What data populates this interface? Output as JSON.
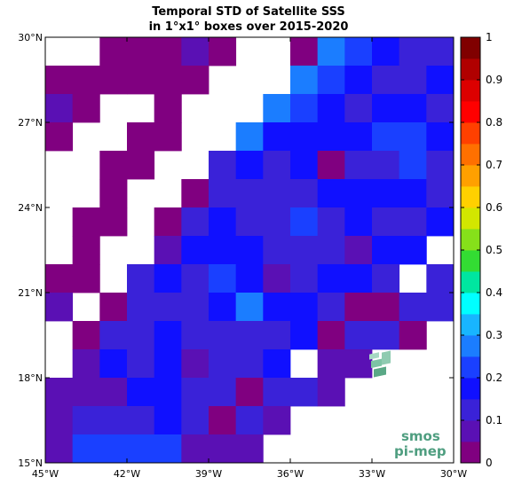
{
  "chart_data": {
    "type": "heatmap",
    "title_lines": [
      "Temporal STD of Satellite SSS",
      "in 1°x1° boxes over 2015-2020"
    ],
    "x_range": [
      -45,
      -30
    ],
    "y_range": [
      15,
      30
    ],
    "x_ticks": [
      {
        "value": -45,
        "label": "45°W"
      },
      {
        "value": -42,
        "label": "42°W"
      },
      {
        "value": -39,
        "label": "39°W"
      },
      {
        "value": -36,
        "label": "36°W"
      },
      {
        "value": -33,
        "label": "33°W"
      },
      {
        "value": -30,
        "label": "30°W"
      }
    ],
    "y_ticks": [
      {
        "value": 15,
        "label": "15°N"
      },
      {
        "value": 18,
        "label": "18°N"
      },
      {
        "value": 21,
        "label": "21°N"
      },
      {
        "value": 24,
        "label": "24°N"
      },
      {
        "value": 27,
        "label": "27°N"
      },
      {
        "value": 30,
        "label": "30°N"
      }
    ],
    "colorbar": {
      "range": [
        0,
        1
      ],
      "ticks": [
        "0",
        "0.1",
        "0.2",
        "0.3",
        "0.4",
        "0.5",
        "0.6",
        "0.7",
        "0.8",
        "0.9",
        "1"
      ],
      "colors": [
        "#800080",
        "#5a10b4",
        "#3a22d8",
        "#1010ff",
        "#1a40ff",
        "#1b7dff",
        "#18b5ff",
        "#00ffff",
        "#00e6a0",
        "#33dc33",
        "#86e01a",
        "#d2e600",
        "#ffd000",
        "#ffa000",
        "#ff7000",
        "#ff4000",
        "#ff0000",
        "#dc0000",
        "#b00000",
        "#800000"
      ]
    },
    "cell_lon_start": -45,
    "cell_lat_start": 29,
    "cell_size_deg": 1,
    "grid_rows_north_to_south": [
      [
        null,
        null,
        0.02,
        0.02,
        0.02,
        0.06,
        0.03,
        null,
        null,
        0.02,
        0.28,
        0.22,
        0.18,
        0.1,
        0.1
      ],
      [
        0.02,
        0.02,
        0.02,
        0.02,
        0.02,
        0.02,
        null,
        null,
        null,
        0.28,
        0.22,
        0.16,
        0.12,
        0.12,
        0.18
      ],
      [
        0.06,
        0.02,
        null,
        null,
        0.02,
        null,
        null,
        null,
        0.28,
        0.24,
        0.18,
        0.12,
        0.16,
        0.16,
        0.12
      ],
      [
        0.02,
        null,
        null,
        0.02,
        0.02,
        null,
        null,
        0.28,
        0.18,
        0.18,
        0.18,
        0.18,
        0.24,
        0.24,
        0.18
      ],
      [
        null,
        null,
        0.02,
        0.02,
        null,
        null,
        0.14,
        0.18,
        0.14,
        0.18,
        0.04,
        0.14,
        0.14,
        0.24,
        0.14
      ],
      [
        null,
        null,
        0.02,
        null,
        null,
        0.02,
        0.14,
        0.14,
        0.14,
        0.14,
        0.18,
        0.16,
        0.18,
        0.18,
        0.14
      ],
      [
        null,
        0.02,
        0.02,
        null,
        0.02,
        0.14,
        0.16,
        0.14,
        0.14,
        0.24,
        0.14,
        0.18,
        0.14,
        0.14,
        0.18
      ],
      [
        null,
        0.02,
        null,
        null,
        0.08,
        0.18,
        0.18,
        0.18,
        0.14,
        0.14,
        0.14,
        0.06,
        0.18,
        0.18,
        null
      ],
      [
        0.02,
        0.02,
        null,
        0.1,
        0.18,
        0.12,
        0.24,
        0.16,
        0.06,
        0.12,
        0.18,
        0.18,
        0.12,
        null,
        0.12
      ],
      [
        0.06,
        null,
        0.02,
        0.12,
        0.12,
        0.12,
        0.18,
        0.26,
        0.18,
        0.18,
        0.12,
        0.02,
        0.02,
        0.12,
        0.12
      ],
      [
        null,
        0.02,
        0.12,
        0.12,
        0.18,
        0.12,
        0.14,
        0.12,
        0.12,
        0.18,
        0.02,
        0.12,
        0.12,
        0.02,
        null
      ],
      [
        null,
        0.06,
        0.18,
        0.12,
        0.18,
        0.06,
        0.12,
        0.12,
        0.18,
        null,
        0.06,
        0.06,
        null,
        null,
        null
      ],
      [
        0.06,
        0.08,
        0.08,
        0.18,
        0.18,
        0.12,
        0.12,
        0.04,
        0.12,
        0.12,
        0.06,
        null,
        null,
        null,
        null
      ],
      [
        0.08,
        0.1,
        0.1,
        0.12,
        0.18,
        0.12,
        0.03,
        0.12,
        0.06,
        null,
        null,
        null,
        null,
        null,
        null
      ],
      [
        0.08,
        0.2,
        0.2,
        0.22,
        0.22,
        0.06,
        0.06,
        0.06,
        null,
        null,
        null,
        null,
        null,
        null,
        null
      ]
    ],
    "logo": {
      "line1": "smos",
      "line2": "pi-mep"
    }
  }
}
